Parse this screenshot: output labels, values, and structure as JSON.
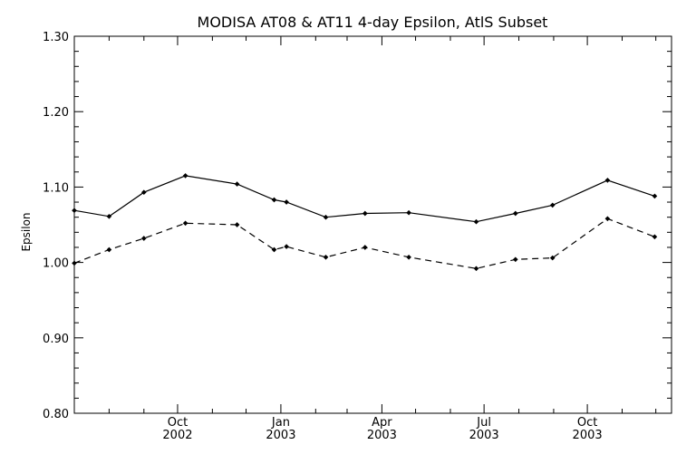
{
  "chart_data": {
    "type": "line",
    "title": "MODISA AT08 & AT11 4-day Epsilon, AtlS Subset",
    "xlabel": "",
    "ylabel": "Epsilon",
    "xlim": [
      "2002-07-01",
      "2003-12-15"
    ],
    "ylim": [
      0.8,
      1.3
    ],
    "yticks": [
      {
        "value": 0.8,
        "label": "0.80"
      },
      {
        "value": 0.9,
        "label": "0.90"
      },
      {
        "value": 1.0,
        "label": "1.00"
      },
      {
        "value": 1.1,
        "label": "1.10"
      },
      {
        "value": 1.2,
        "label": "1.20"
      },
      {
        "value": 1.3,
        "label": "1.30"
      }
    ],
    "xticks": [
      {
        "date": "2002-10-01",
        "line1": "Oct",
        "line2": "2002"
      },
      {
        "date": "2003-01-01",
        "line1": "Jan",
        "line2": "2003"
      },
      {
        "date": "2003-04-01",
        "line1": "Apr",
        "line2": "2003"
      },
      {
        "date": "2003-07-01",
        "line1": "Jul",
        "line2": "2003"
      },
      {
        "date": "2003-10-01",
        "line1": "Oct",
        "line2": "2003"
      }
    ],
    "grid": false,
    "legend": "none",
    "series": [
      {
        "style": "solid",
        "color": "#000000",
        "points": [
          {
            "x": "2002-07-01",
            "y": 1.069
          },
          {
            "x": "2002-08-01",
            "y": 1.061
          },
          {
            "x": "2002-09-01",
            "y": 1.093
          },
          {
            "x": "2002-10-08",
            "y": 1.115
          },
          {
            "x": "2002-11-23",
            "y": 1.104
          },
          {
            "x": "2002-12-26",
            "y": 1.083
          },
          {
            "x": "2003-01-06",
            "y": 1.08
          },
          {
            "x": "2003-02-10",
            "y": 1.06
          },
          {
            "x": "2003-03-17",
            "y": 1.065
          },
          {
            "x": "2003-04-25",
            "y": 1.066
          },
          {
            "x": "2003-06-24",
            "y": 1.054
          },
          {
            "x": "2003-07-29",
            "y": 1.065
          },
          {
            "x": "2003-08-31",
            "y": 1.076
          },
          {
            "x": "2003-10-19",
            "y": 1.109
          },
          {
            "x": "2003-11-30",
            "y": 1.088
          }
        ]
      },
      {
        "style": "dashed",
        "color": "#000000",
        "points": [
          {
            "x": "2002-07-01",
            "y": 0.999
          },
          {
            "x": "2002-08-01",
            "y": 1.017
          },
          {
            "x": "2002-09-01",
            "y": 1.032
          },
          {
            "x": "2002-10-08",
            "y": 1.052
          },
          {
            "x": "2002-11-23",
            "y": 1.05
          },
          {
            "x": "2002-12-26",
            "y": 1.017
          },
          {
            "x": "2003-01-06",
            "y": 1.021
          },
          {
            "x": "2003-02-10",
            "y": 1.007
          },
          {
            "x": "2003-03-17",
            "y": 1.02
          },
          {
            "x": "2003-04-25",
            "y": 1.007
          },
          {
            "x": "2003-06-24",
            "y": 0.992
          },
          {
            "x": "2003-07-29",
            "y": 1.004
          },
          {
            "x": "2003-08-31",
            "y": 1.006
          },
          {
            "x": "2003-10-19",
            "y": 1.058
          },
          {
            "x": "2003-11-30",
            "y": 1.034
          }
        ]
      }
    ]
  }
}
